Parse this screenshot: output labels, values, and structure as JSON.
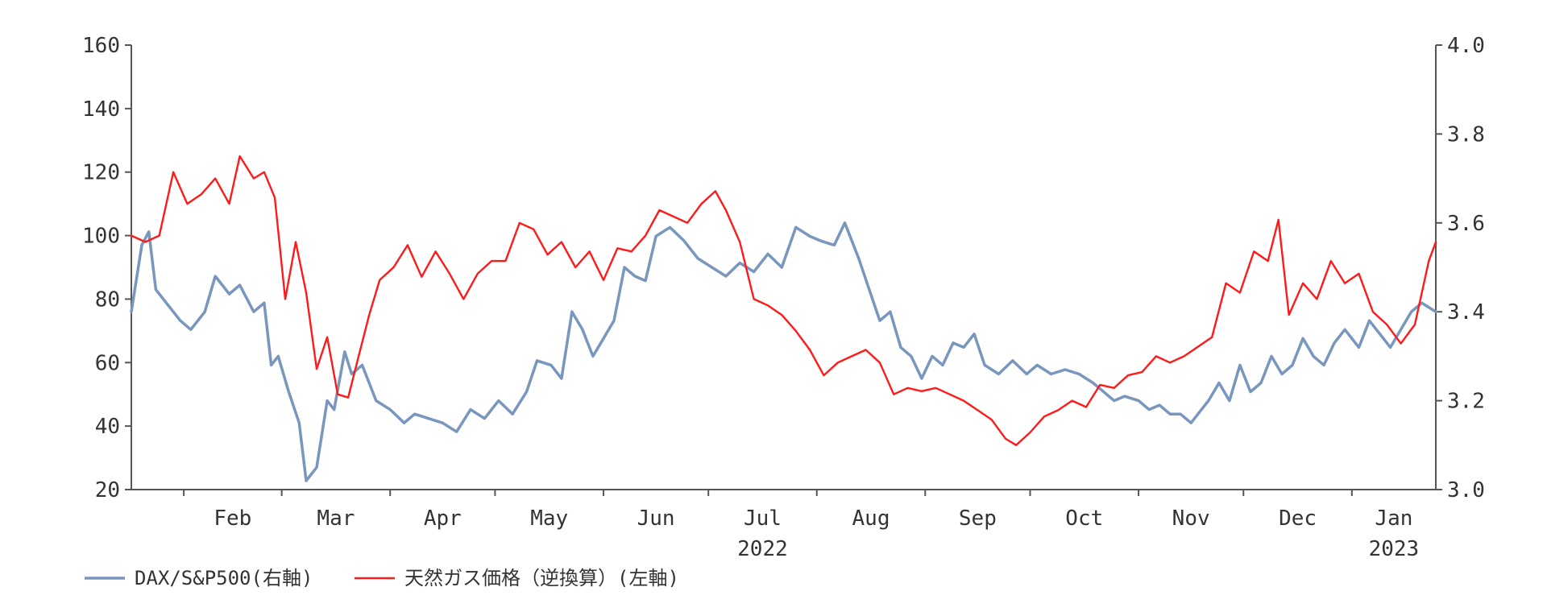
{
  "chart_data": {
    "type": "line",
    "title": "",
    "x_tick_labels": [
      "Feb",
      "Mar",
      "Apr",
      "May",
      "Jun",
      "Jul",
      "Aug",
      "Sep",
      "Oct",
      "Nov",
      "Dec",
      "Jan"
    ],
    "x_year_labels": [
      {
        "month": "Jul",
        "label": "2022"
      },
      {
        "month": "Jan",
        "label": "2023"
      }
    ],
    "left_axis": {
      "min": 20,
      "max": 160,
      "step": 20,
      "ticks": [
        "20",
        "40",
        "60",
        "80",
        "100",
        "120",
        "140",
        "160"
      ]
    },
    "right_axis": {
      "min": 3.0,
      "max": 4.0,
      "step": 0.2,
      "ticks": [
        "3.0",
        "3.2",
        "3.4",
        "3.6",
        "3.8",
        "4.0"
      ]
    },
    "x_range": [
      "2022-01-17",
      "2023-01-25"
    ],
    "grid": false,
    "legend_position": "bottom-left",
    "series": [
      {
        "name": "DAX/S&P500(右軸)",
        "axis": "right",
        "color": "#7896BE",
        "points": [
          [
            "2022-01-17",
            3.4
          ],
          [
            "2022-01-20",
            3.55
          ],
          [
            "2022-01-22",
            3.58
          ],
          [
            "2022-01-24",
            3.45
          ],
          [
            "2022-01-27",
            3.42
          ],
          [
            "2022-01-31",
            3.38
          ],
          [
            "2022-02-03",
            3.36
          ],
          [
            "2022-02-07",
            3.4
          ],
          [
            "2022-02-10",
            3.48
          ],
          [
            "2022-02-14",
            3.44
          ],
          [
            "2022-02-17",
            3.46
          ],
          [
            "2022-02-21",
            3.4
          ],
          [
            "2022-02-24",
            3.42
          ],
          [
            "2022-02-26",
            3.28
          ],
          [
            "2022-02-28",
            3.3
          ],
          [
            "2022-03-03",
            3.22
          ],
          [
            "2022-03-06",
            3.15
          ],
          [
            "2022-03-08",
            3.02
          ],
          [
            "2022-03-11",
            3.05
          ],
          [
            "2022-03-14",
            3.2
          ],
          [
            "2022-03-16",
            3.18
          ],
          [
            "2022-03-19",
            3.31
          ],
          [
            "2022-03-21",
            3.26
          ],
          [
            "2022-03-24",
            3.28
          ],
          [
            "2022-03-28",
            3.2
          ],
          [
            "2022-04-01",
            3.18
          ],
          [
            "2022-04-05",
            3.15
          ],
          [
            "2022-04-08",
            3.17
          ],
          [
            "2022-04-12",
            3.16
          ],
          [
            "2022-04-16",
            3.15
          ],
          [
            "2022-04-20",
            3.13
          ],
          [
            "2022-04-24",
            3.18
          ],
          [
            "2022-04-28",
            3.16
          ],
          [
            "2022-05-02",
            3.2
          ],
          [
            "2022-05-06",
            3.17
          ],
          [
            "2022-05-10",
            3.22
          ],
          [
            "2022-05-13",
            3.29
          ],
          [
            "2022-05-17",
            3.28
          ],
          [
            "2022-05-20",
            3.25
          ],
          [
            "2022-05-23",
            3.4
          ],
          [
            "2022-05-26",
            3.36
          ],
          [
            "2022-05-29",
            3.3
          ],
          [
            "2022-06-01",
            3.34
          ],
          [
            "2022-06-04",
            3.38
          ],
          [
            "2022-06-07",
            3.5
          ],
          [
            "2022-06-10",
            3.48
          ],
          [
            "2022-06-13",
            3.47
          ],
          [
            "2022-06-16",
            3.57
          ],
          [
            "2022-06-20",
            3.59
          ],
          [
            "2022-06-24",
            3.56
          ],
          [
            "2022-06-28",
            3.52
          ],
          [
            "2022-07-02",
            3.5
          ],
          [
            "2022-07-06",
            3.48
          ],
          [
            "2022-07-10",
            3.51
          ],
          [
            "2022-07-14",
            3.49
          ],
          [
            "2022-07-18",
            3.53
          ],
          [
            "2022-07-22",
            3.5
          ],
          [
            "2022-07-26",
            3.59
          ],
          [
            "2022-07-30",
            3.57
          ],
          [
            "2022-08-02",
            3.56
          ],
          [
            "2022-08-06",
            3.55
          ],
          [
            "2022-08-09",
            3.6
          ],
          [
            "2022-08-13",
            3.52
          ],
          [
            "2022-08-16",
            3.45
          ],
          [
            "2022-08-19",
            3.38
          ],
          [
            "2022-08-22",
            3.4
          ],
          [
            "2022-08-25",
            3.32
          ],
          [
            "2022-08-28",
            3.3
          ],
          [
            "2022-08-31",
            3.25
          ],
          [
            "2022-09-03",
            3.3
          ],
          [
            "2022-09-06",
            3.28
          ],
          [
            "2022-09-09",
            3.33
          ],
          [
            "2022-09-12",
            3.32
          ],
          [
            "2022-09-15",
            3.35
          ],
          [
            "2022-09-18",
            3.28
          ],
          [
            "2022-09-22",
            3.26
          ],
          [
            "2022-09-26",
            3.29
          ],
          [
            "2022-09-30",
            3.26
          ],
          [
            "2022-10-03",
            3.28
          ],
          [
            "2022-10-07",
            3.26
          ],
          [
            "2022-10-11",
            3.27
          ],
          [
            "2022-10-15",
            3.26
          ],
          [
            "2022-10-19",
            3.24
          ],
          [
            "2022-10-22",
            3.22
          ],
          [
            "2022-10-25",
            3.2
          ],
          [
            "2022-10-28",
            3.21
          ],
          [
            "2022-11-01",
            3.2
          ],
          [
            "2022-11-04",
            3.18
          ],
          [
            "2022-11-07",
            3.19
          ],
          [
            "2022-11-10",
            3.17
          ],
          [
            "2022-11-13",
            3.17
          ],
          [
            "2022-11-16",
            3.15
          ],
          [
            "2022-11-19",
            3.18
          ],
          [
            "2022-11-21",
            3.2
          ],
          [
            "2022-11-24",
            3.24
          ],
          [
            "2022-11-27",
            3.2
          ],
          [
            "2022-11-30",
            3.28
          ],
          [
            "2022-12-03",
            3.22
          ],
          [
            "2022-12-06",
            3.24
          ],
          [
            "2022-12-09",
            3.3
          ],
          [
            "2022-12-12",
            3.26
          ],
          [
            "2022-12-15",
            3.28
          ],
          [
            "2022-12-18",
            3.34
          ],
          [
            "2022-12-21",
            3.3
          ],
          [
            "2022-12-24",
            3.28
          ],
          [
            "2022-12-27",
            3.33
          ],
          [
            "2022-12-30",
            3.36
          ],
          [
            "2023-01-03",
            3.32
          ],
          [
            "2023-01-06",
            3.38
          ],
          [
            "2023-01-09",
            3.35
          ],
          [
            "2023-01-12",
            3.32
          ],
          [
            "2023-01-15",
            3.36
          ],
          [
            "2023-01-18",
            3.4
          ],
          [
            "2023-01-21",
            3.42
          ],
          [
            "2023-01-25",
            3.4
          ]
        ]
      },
      {
        "name": "天然ガス価格（逆換算）(左軸)",
        "axis": "left",
        "color": "#FF1A1A",
        "points": [
          [
            "2022-01-17",
            100
          ],
          [
            "2022-01-21",
            98
          ],
          [
            "2022-01-25",
            100
          ],
          [
            "2022-01-29",
            120
          ],
          [
            "2022-02-02",
            110
          ],
          [
            "2022-02-06",
            113
          ],
          [
            "2022-02-10",
            118
          ],
          [
            "2022-02-14",
            110
          ],
          [
            "2022-02-17",
            125
          ],
          [
            "2022-02-21",
            118
          ],
          [
            "2022-02-24",
            120
          ],
          [
            "2022-02-27",
            112
          ],
          [
            "2022-03-02",
            80
          ],
          [
            "2022-03-05",
            98
          ],
          [
            "2022-03-08",
            82
          ],
          [
            "2022-03-11",
            58
          ],
          [
            "2022-03-14",
            68
          ],
          [
            "2022-03-17",
            50
          ],
          [
            "2022-03-20",
            49
          ],
          [
            "2022-03-23",
            62
          ],
          [
            "2022-03-26",
            75
          ],
          [
            "2022-03-29",
            86
          ],
          [
            "2022-04-02",
            90
          ],
          [
            "2022-04-06",
            97
          ],
          [
            "2022-04-10",
            87
          ],
          [
            "2022-04-14",
            95
          ],
          [
            "2022-04-18",
            88
          ],
          [
            "2022-04-22",
            80
          ],
          [
            "2022-04-26",
            88
          ],
          [
            "2022-04-30",
            92
          ],
          [
            "2022-05-04",
            92
          ],
          [
            "2022-05-08",
            104
          ],
          [
            "2022-05-12",
            102
          ],
          [
            "2022-05-16",
            94
          ],
          [
            "2022-05-20",
            98
          ],
          [
            "2022-05-24",
            90
          ],
          [
            "2022-05-28",
            95
          ],
          [
            "2022-06-01",
            86
          ],
          [
            "2022-06-05",
            96
          ],
          [
            "2022-06-09",
            95
          ],
          [
            "2022-06-13",
            100
          ],
          [
            "2022-06-17",
            108
          ],
          [
            "2022-06-21",
            106
          ],
          [
            "2022-06-25",
            104
          ],
          [
            "2022-06-29",
            110
          ],
          [
            "2022-07-03",
            114
          ],
          [
            "2022-07-06",
            108
          ],
          [
            "2022-07-10",
            98
          ],
          [
            "2022-07-14",
            80
          ],
          [
            "2022-07-18",
            78
          ],
          [
            "2022-07-22",
            75
          ],
          [
            "2022-07-26",
            70
          ],
          [
            "2022-07-30",
            64
          ],
          [
            "2022-08-03",
            56
          ],
          [
            "2022-08-07",
            60
          ],
          [
            "2022-08-11",
            62
          ],
          [
            "2022-08-15",
            64
          ],
          [
            "2022-08-19",
            60
          ],
          [
            "2022-08-23",
            50
          ],
          [
            "2022-08-27",
            52
          ],
          [
            "2022-08-31",
            51
          ],
          [
            "2022-09-04",
            52
          ],
          [
            "2022-09-08",
            50
          ],
          [
            "2022-09-12",
            48
          ],
          [
            "2022-09-16",
            45
          ],
          [
            "2022-09-20",
            42
          ],
          [
            "2022-09-24",
            36
          ],
          [
            "2022-09-27",
            34
          ],
          [
            "2022-10-01",
            38
          ],
          [
            "2022-10-05",
            43
          ],
          [
            "2022-10-09",
            45
          ],
          [
            "2022-10-13",
            48
          ],
          [
            "2022-10-17",
            46
          ],
          [
            "2022-10-21",
            53
          ],
          [
            "2022-10-25",
            52
          ],
          [
            "2022-10-29",
            56
          ],
          [
            "2022-11-02",
            57
          ],
          [
            "2022-11-06",
            62
          ],
          [
            "2022-11-10",
            60
          ],
          [
            "2022-11-14",
            62
          ],
          [
            "2022-11-18",
            65
          ],
          [
            "2022-11-22",
            68
          ],
          [
            "2022-11-26",
            85
          ],
          [
            "2022-11-30",
            82
          ],
          [
            "2022-12-04",
            95
          ],
          [
            "2022-12-08",
            92
          ],
          [
            "2022-12-11",
            105
          ],
          [
            "2022-12-14",
            75
          ],
          [
            "2022-12-18",
            85
          ],
          [
            "2022-12-22",
            80
          ],
          [
            "2022-12-26",
            92
          ],
          [
            "2022-12-30",
            85
          ],
          [
            "2023-01-03",
            88
          ],
          [
            "2023-01-07",
            76
          ],
          [
            "2023-01-11",
            72
          ],
          [
            "2023-01-15",
            66
          ],
          [
            "2023-01-19",
            72
          ],
          [
            "2023-01-23",
            92
          ],
          [
            "2023-01-25",
            98
          ]
        ]
      }
    ]
  }
}
